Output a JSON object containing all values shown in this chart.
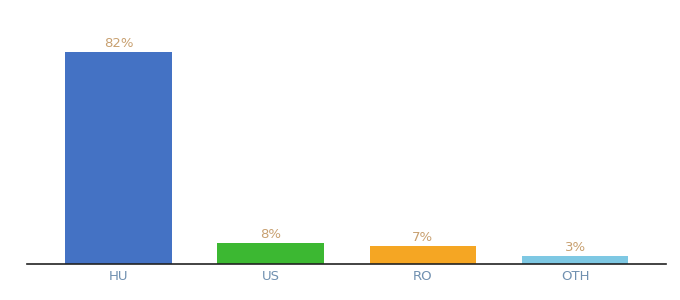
{
  "categories": [
    "HU",
    "US",
    "RO",
    "OTH"
  ],
  "values": [
    82,
    8,
    7,
    3
  ],
  "bar_colors": [
    "#4472c4",
    "#3cb832",
    "#f5a623",
    "#7ec8e3"
  ],
  "label_color": "#c8a070",
  "label_fontsize": 9.5,
  "tick_fontsize": 9.5,
  "tick_color": "#7090b0",
  "background_color": "#ffffff",
  "ylim": [
    0,
    93
  ],
  "bar_width": 0.7
}
